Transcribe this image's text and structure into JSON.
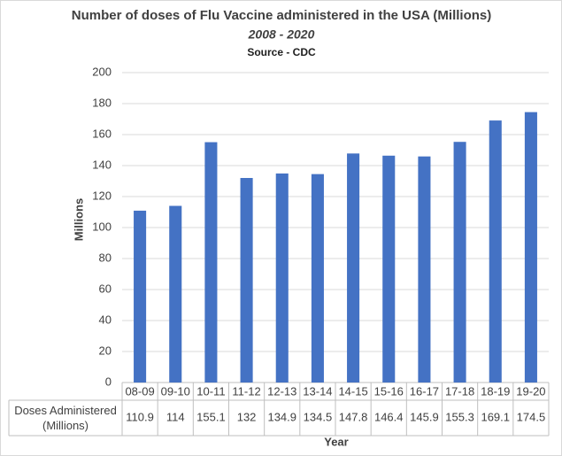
{
  "chart_data": {
    "type": "bar",
    "title": "Number of doses of Flu Vaccine administered in the USA (Millions)",
    "subtitle": "2008 - 2020",
    "source": "Source - CDC",
    "y_label": "Millions",
    "x_label": "Year",
    "categories": [
      "08-09",
      "09-10",
      "10-11",
      "11-12",
      "12-13",
      "13-14",
      "14-15",
      "15-16",
      "16-17",
      "17-18",
      "18-19",
      "19-20"
    ],
    "series": [
      {
        "name": "Doses Administered (Millions)",
        "color": "#4472c4",
        "values": [
          110.9,
          114,
          155.1,
          132,
          134.9,
          134.5,
          147.8,
          146.4,
          145.9,
          155.3,
          169.1,
          174.5
        ]
      }
    ],
    "ylim": [
      0,
      200
    ],
    "yticks": [
      0,
      20,
      40,
      60,
      80,
      100,
      120,
      140,
      160,
      180,
      200
    ],
    "grid": true
  }
}
